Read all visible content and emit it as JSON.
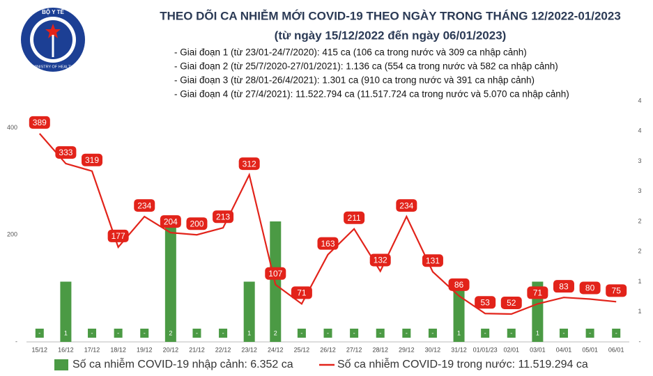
{
  "logo": {
    "top": "BỘ Y TẾ",
    "bottom": "MINISTRY OF HEALTH"
  },
  "chart_data": {
    "type": "bar-line",
    "title": "THEO DÕI CA NHIỄM MỚI COVID-19 THEO NGÀY TRONG THÁNG 12/2022-01/2023",
    "subtitle": "(từ ngày 15/12/2022 đến ngày 06/01/2023)",
    "annotations": [
      "- Giai đoạn 1 (từ 23/01-24/7/2020): 415 ca (106 ca trong nước và 309 ca nhập cảnh)",
      "- Giai đoạn 2 (từ 25/7/2020-27/01/2021): 1.136 ca (554 ca trong nước và 582 ca nhập cảnh)",
      "- Giai đoạn 3 (từ 28/01-26/4/2021): 1.301 ca (910 ca trong nước và 391 ca nhập cảnh)",
      "- Giai đoạn 4 (từ 27/4/2021): 11.522.794 ca (11.517.724 ca trong nước và 5.070 ca nhập cảnh)"
    ],
    "categories": [
      "15/12",
      "16/12",
      "17/12",
      "18/12",
      "19/12",
      "20/12",
      "21/12",
      "22/12",
      "23/12",
      "24/12",
      "25/12",
      "26/12",
      "27/12",
      "28/12",
      "29/12",
      "30/12",
      "31/12",
      "01/01/23",
      "02/01",
      "03/01",
      "04/01",
      "05/01",
      "06/01"
    ],
    "series": [
      {
        "name": "Số ca nhiễm COVID-19 nhập cảnh: 6.352 ca",
        "type": "bar",
        "axis": "y2",
        "color": "#4b9a44",
        "values": [
          0,
          1,
          0,
          0,
          0,
          2,
          0,
          0,
          1,
          2,
          0,
          0,
          0,
          0,
          0,
          0,
          1,
          0,
          0,
          1,
          0,
          0,
          0
        ],
        "value_labels": [
          "-",
          "1",
          "-",
          "-",
          "-",
          "2",
          "-",
          "-",
          "1",
          "2",
          "-",
          "-",
          "-",
          "-",
          "-",
          "-",
          "1",
          "-",
          "-",
          "1",
          "-",
          "-",
          "-"
        ]
      },
      {
        "name": "Số ca nhiễm COVID-19 trong nước: 11.519.294 ca",
        "type": "line",
        "color": "#e2231a",
        "values": [
          389,
          333,
          319,
          177,
          234,
          204,
          200,
          213,
          312,
          107,
          71,
          163,
          211,
          132,
          234,
          131,
          86,
          53,
          52,
          71,
          83,
          80,
          75
        ]
      }
    ],
    "ylim": [
      0,
      450
    ],
    "yticks": [
      {
        "value": 0,
        "label": "-"
      },
      200,
      400
    ],
    "y2lim": [
      0,
      4
    ],
    "y2ticks": [
      {
        "value": 0,
        "label": "-"
      },
      {
        "value": 0.5,
        "label": "1"
      },
      1,
      {
        "value": 1.5,
        "label": "2"
      },
      2,
      {
        "value": 2.5,
        "label": "3"
      },
      3,
      {
        "value": 3.5,
        "label": "4"
      },
      4
    ],
    "grid": false
  }
}
